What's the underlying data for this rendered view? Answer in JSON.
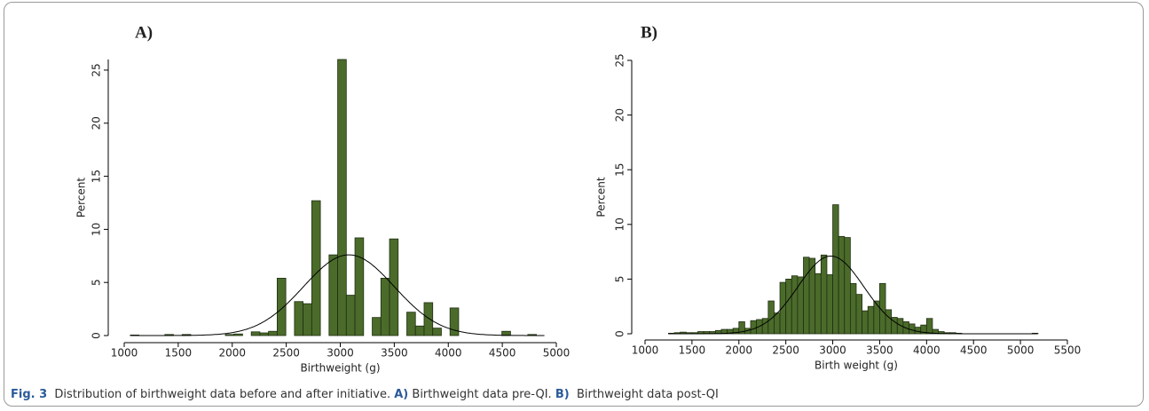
{
  "chart_data": [
    {
      "type": "histogram",
      "panel_label": "A)",
      "xlabel": "Birthweight (g)",
      "ylabel": "Percent",
      "color": "#4b6b2b",
      "edge_color": "#1f2e12",
      "bins": [
        1056,
        1136,
        1216,
        1296,
        1376,
        1456,
        1536,
        1616,
        1696,
        1776,
        1856,
        1936,
        2016,
        2096,
        2176,
        2256,
        2336,
        2416,
        2496,
        2576,
        2656,
        2736,
        2816,
        2896,
        2976,
        3056,
        3136,
        3216,
        3296,
        3376,
        3456,
        3536,
        3616,
        3696,
        3776,
        3856,
        3936,
        4016,
        4096,
        4176,
        4256,
        4336,
        4416,
        4496,
        4576,
        4656,
        4736,
        4816,
        4896
      ],
      "values": [
        0.05,
        0,
        0,
        0,
        0.1,
        0,
        0.1,
        0,
        0,
        0,
        0,
        0.1,
        0.15,
        0,
        0.35,
        0.25,
        0.4,
        5.4,
        0,
        3.2,
        3.0,
        12.7,
        0,
        7.6,
        26,
        3.8,
        9.2,
        0,
        1.7,
        5.4,
        9.1,
        0,
        2.2,
        0.9,
        3.1,
        0.7,
        0,
        2.6,
        0,
        0,
        0,
        0,
        0,
        0.4,
        0,
        0,
        0.1,
        0
      ],
      "normal_curve": {
        "mean": 3080,
        "sd": 420
      },
      "xlim": [
        1000,
        5000
      ],
      "xticks": [
        1000,
        1500,
        2000,
        2500,
        3000,
        3500,
        4000,
        4500,
        5000
      ],
      "ylim": [
        0,
        26
      ],
      "yticks": [
        0,
        5,
        10,
        15,
        20,
        25
      ]
    },
    {
      "type": "histogram",
      "panel_label": "B)",
      "xlabel": "Birth weight (g)",
      "ylabel": "Percent",
      "color": "#4b6b2b",
      "edge_color": "#1f2e12",
      "bins": [
        1250,
        1312.5,
        1375,
        1437.5,
        1500,
        1562.5,
        1625,
        1687.5,
        1750,
        1812.5,
        1875,
        1937.5,
        2000,
        2062.5,
        2125,
        2187.5,
        2250,
        2312.5,
        2375,
        2437.5,
        2500,
        2562.5,
        2625,
        2687.5,
        2750,
        2812.5,
        2875,
        2937.5,
        3000,
        3062.5,
        3125,
        3187.5,
        3250,
        3312.5,
        3375,
        3437.5,
        3500,
        3562.5,
        3625,
        3687.5,
        3750,
        3812.5,
        3875,
        3937.5,
        4000,
        4062.5,
        4125,
        4187.5,
        4250,
        4312.5,
        4375,
        4437.5,
        4500,
        4562.5,
        4625,
        4687.5,
        4750,
        4812.5,
        4875,
        4937.5,
        5000,
        5062.5,
        5125,
        5187.5
      ],
      "values": [
        0.05,
        0.1,
        0.15,
        0.1,
        0.1,
        0.2,
        0.2,
        0.2,
        0.3,
        0.4,
        0.4,
        0.5,
        1.1,
        0.5,
        1.2,
        1.3,
        1.4,
        3.0,
        1.9,
        4.7,
        5.0,
        5.3,
        5.2,
        7.0,
        6.9,
        5.5,
        7.2,
        5.4,
        11.8,
        8.9,
        8.8,
        4.6,
        3.6,
        2.1,
        2.5,
        3.0,
        4.6,
        2.2,
        1.5,
        1.4,
        1.1,
        0.9,
        0.6,
        0.8,
        1.4,
        0.4,
        0.2,
        0.1,
        0.1,
        0.05,
        0,
        0,
        0,
        0,
        0,
        0,
        0,
        0,
        0,
        0,
        0,
        0,
        0.05
      ],
      "normal_curve": {
        "mean": 2980,
        "sd": 351
      },
      "xlim": [
        1000,
        5500
      ],
      "xticks": [
        1000,
        1500,
        2000,
        2500,
        3000,
        3500,
        4000,
        4500,
        5000,
        5500
      ],
      "ylim": [
        0,
        25
      ],
      "yticks": [
        0,
        5,
        10,
        15,
        20,
        25
      ]
    }
  ],
  "caption": {
    "label": "Fig. 3",
    "text": "Distribution of birthweight data before and after initiative.",
    "parts": [
      {
        "label": "A)",
        "text": "Birthweight data pre-QI."
      },
      {
        "label": "B)",
        "text": "Birthweight data post-QI"
      }
    ]
  }
}
